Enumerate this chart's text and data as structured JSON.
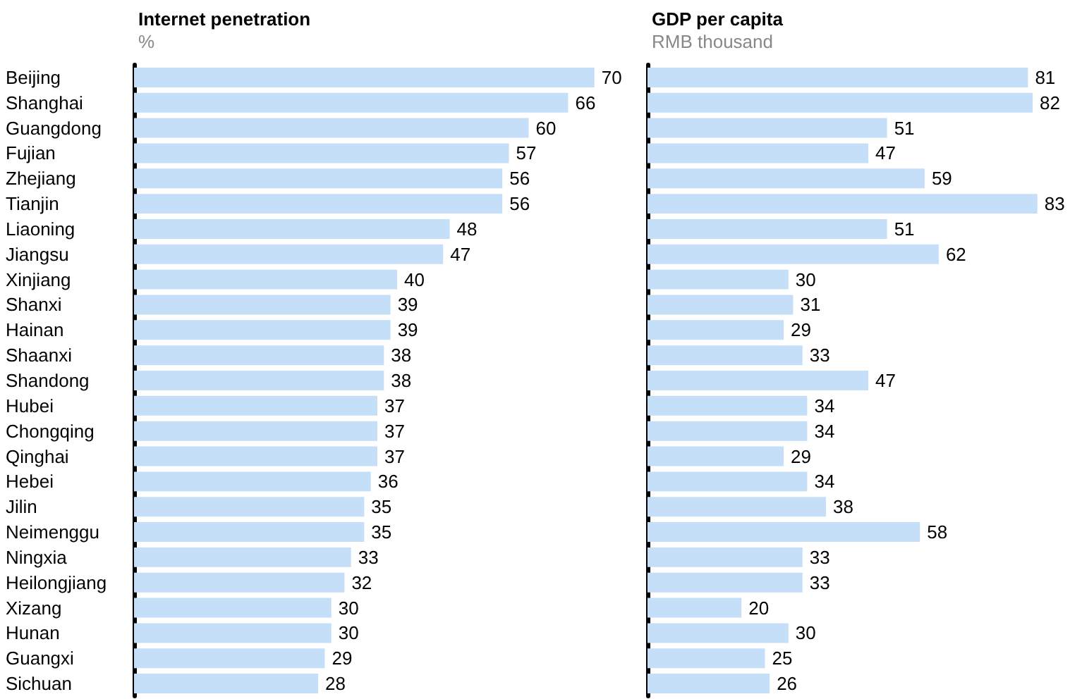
{
  "chart_data": [
    {
      "type": "bar",
      "orientation": "horizontal",
      "title": "Internet penetration",
      "subtitle": "%",
      "categories": [
        "Beijing",
        "Shanghai",
        "Guangdong",
        "Fujian",
        "Zhejiang",
        "Tianjin",
        "Liaoning",
        "Jiangsu",
        "Xinjiang",
        "Shanxi",
        "Hainan",
        "Shaanxi",
        "Shandong",
        "Hubei",
        "Chongqing",
        "Qinghai",
        "Hebei",
        "Jilin",
        "Neimenggu",
        "Ningxia",
        "Heilongjiang",
        "Xizang",
        "Hunan",
        "Guangxi",
        "Sichuan"
      ],
      "values": [
        70,
        66,
        60,
        57,
        56,
        56,
        48,
        47,
        40,
        39,
        39,
        38,
        38,
        37,
        37,
        37,
        36,
        35,
        35,
        33,
        32,
        30,
        30,
        29,
        28
      ],
      "color": "#c6dff8",
      "data_labels": true,
      "tick_labels": "y"
    },
    {
      "type": "bar",
      "orientation": "horizontal",
      "title": "GDP per capita",
      "subtitle": "RMB thousand",
      "categories": [
        null,
        null,
        null,
        null,
        null,
        null,
        null,
        null,
        null,
        null,
        null,
        null,
        null,
        null,
        null,
        null,
        null,
        null,
        null,
        null,
        null,
        null,
        null,
        null,
        null
      ],
      "values": [
        81,
        82,
        51,
        47,
        59,
        83,
        51,
        62,
        30,
        31,
        29,
        33,
        47,
        34,
        34,
        29,
        34,
        38,
        58,
        33,
        33,
        20,
        30,
        25,
        26
      ],
      "color": "#c6dff8",
      "data_labels": true,
      "tick_labels": false
    }
  ]
}
